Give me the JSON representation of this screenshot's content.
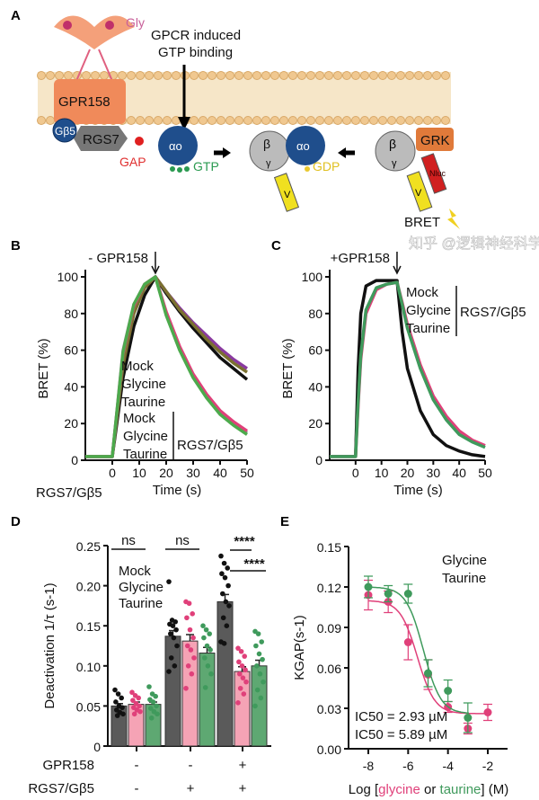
{
  "colors": {
    "mock": "#111111",
    "mock_rgs": "#8a8a8a",
    "glycine": "#e0407a",
    "glycine_norgs": "#8a3aa0",
    "taurine": "#3f9a5c",
    "taurine_norgs": "#7a7030",
    "bar_mock": "#5a5a5a",
    "bar_glycine": "#f5a3b5",
    "bar_taurine": "#5ea872",
    "membrane": "#f2d8ae"
  },
  "panelA": {
    "label": "A",
    "gly": "Gly",
    "gpcr_line1": "GPCR induced",
    "gpcr_line2": "GTP binding",
    "gpr158": "GPR158",
    "gb5": "Gβ5",
    "rgs7": "RGS7",
    "gap": "GAP",
    "alpha": "αo",
    "gtp": "GTP",
    "beta": "β",
    "gamma": "γ",
    "gdp": "GDP",
    "venus": "V",
    "grk": "GRK",
    "nluc": "Nluc",
    "bret": "BRET"
  },
  "watermark": "知乎 @逻辑神经科学",
  "chart_data": [
    {
      "panel": "B",
      "type": "line",
      "title": "- GPR158",
      "xlabel": "Time (s)",
      "ylabel": "BRET (%)",
      "xlim": [
        -10,
        50
      ],
      "ylim": [
        0,
        100
      ],
      "xticks": [
        0,
        10,
        20,
        30,
        40,
        50
      ],
      "yticks": [
        0,
        20,
        40,
        60,
        80,
        100
      ],
      "stimulus_time": 16,
      "below_label": "RGS7/Gβ5",
      "legend_group_label": "RGS7/Gβ5",
      "x": [
        -10,
        -5,
        0,
        4,
        8,
        12,
        16,
        20,
        25,
        30,
        35,
        40,
        45,
        50
      ],
      "series": [
        {
          "name": "Mock",
          "color": "#111111",
          "y": [
            2,
            2,
            2,
            45,
            73,
            90,
            100,
            91,
            81,
            72,
            64,
            56,
            50,
            44
          ]
        },
        {
          "name": "Glycine",
          "color": "#8a3aa0",
          "y": [
            2,
            2,
            2,
            55,
            82,
            95,
            100,
            92,
            83,
            75,
            68,
            61,
            55,
            50
          ]
        },
        {
          "name": "Taurine",
          "color": "#7a7030",
          "y": [
            2,
            2,
            2,
            52,
            80,
            94,
            100,
            92,
            82,
            74,
            66,
            59,
            53,
            48
          ]
        },
        {
          "name": "Mock",
          "group": "RGS7/Gβ5",
          "color": "#8a8a8a",
          "y": [
            2,
            2,
            2,
            60,
            85,
            96,
            100,
            80,
            61,
            46,
            35,
            26,
            20,
            15
          ]
        },
        {
          "name": "Glycine",
          "group": "RGS7/Gβ5",
          "color": "#e0407a",
          "y": [
            2,
            2,
            2,
            58,
            84,
            96,
            100,
            81,
            62,
            47,
            36,
            27,
            21,
            16
          ]
        },
        {
          "name": "Taurine",
          "group": "RGS7/Gβ5",
          "color": "#4caa4c",
          "y": [
            2,
            2,
            2,
            59,
            85,
            96,
            100,
            79,
            60,
            45,
            34,
            25,
            19,
            14
          ]
        }
      ]
    },
    {
      "panel": "C",
      "type": "line",
      "title": "+GPR158",
      "xlabel": "Time (s)",
      "ylabel": "BRET (%)",
      "xlim": [
        -10,
        50
      ],
      "ylim": [
        0,
        100
      ],
      "xticks": [
        0,
        10,
        20,
        30,
        40,
        50
      ],
      "yticks": [
        0,
        20,
        40,
        60,
        80,
        100
      ],
      "stimulus_time": 16,
      "legend_group_label": "RGS7/Gβ5",
      "x": [
        -10,
        -5,
        0,
        1,
        2,
        4,
        8,
        12,
        16,
        18,
        20,
        25,
        30,
        35,
        40,
        45,
        50
      ],
      "series": [
        {
          "name": "Mock",
          "color": "#111111",
          "y": [
            2,
            2,
            2,
            50,
            80,
            95,
            98,
            98,
            98,
            70,
            50,
            27,
            14,
            8,
            5,
            3,
            2
          ]
        },
        {
          "name": "Glycine",
          "color": "#e0407a",
          "y": [
            2,
            2,
            2,
            30,
            55,
            80,
            93,
            96,
            97,
            86,
            74,
            52,
            35,
            24,
            16,
            11,
            8
          ]
        },
        {
          "name": "Taurine",
          "color": "#3f9a5c",
          "y": [
            2,
            2,
            2,
            32,
            57,
            82,
            94,
            96,
            97,
            85,
            72,
            50,
            33,
            22,
            14,
            10,
            7
          ]
        }
      ]
    },
    {
      "panel": "D",
      "type": "bar",
      "ylabel": "Deactivation 1/τ (s-1)",
      "ylim": [
        0,
        0.25
      ],
      "yticks": [
        "0",
        "0.05",
        "0.10",
        "0.15",
        "0.20",
        "0.25"
      ],
      "legend": [
        "Mock",
        "Glycine",
        "Taurine"
      ],
      "row_labels": [
        "GPR158",
        "RGS7/Gβ5"
      ],
      "groups": [
        {
          "gpr158": "-",
          "rgs7": "-",
          "values": [
            0.05,
            0.052,
            0.052
          ],
          "errors": [
            0.003,
            0.003,
            0.003
          ],
          "significance": "ns",
          "points": [
            [
              0.07,
              0.065,
              0.06,
              0.055,
              0.05,
              0.048,
              0.045,
              0.042,
              0.04,
              0.038
            ],
            [
              0.067,
              0.063,
              0.06,
              0.057,
              0.053,
              0.05,
              0.048,
              0.045,
              0.043,
              0.04
            ],
            [
              0.074,
              0.065,
              0.062,
              0.058,
              0.055,
              0.05,
              0.047,
              0.043,
              0.04,
              0.035
            ]
          ]
        },
        {
          "gpr158": "-",
          "rgs7": "+",
          "values": [
            0.137,
            0.131,
            0.116
          ],
          "errors": [
            0.007,
            0.008,
            0.007
          ],
          "significance": "ns",
          "points": [
            [
              0.205,
              0.157,
              0.155,
              0.152,
              0.15,
              0.145,
              0.14,
              0.135,
              0.125,
              0.11,
              0.1,
              0.093
            ],
            [
              0.18,
              0.178,
              0.165,
              0.16,
              0.145,
              0.135,
              0.125,
              0.12,
              0.11,
              0.1,
              0.09,
              0.072
            ],
            [
              0.15,
              0.145,
              0.14,
              0.135,
              0.125,
              0.12,
              0.11,
              0.1,
              0.09,
              0.073
            ]
          ]
        },
        {
          "gpr158": "+",
          "rgs7": "+",
          "values": [
            0.18,
            0.093,
            0.1
          ],
          "errors": [
            0.009,
            0.006,
            0.007
          ],
          "significance": [
            "****",
            "****"
          ],
          "points": [
            [
              0.237,
              0.228,
              0.222,
              0.215,
              0.21,
              0.2,
              0.19,
              0.18,
              0.175,
              0.16,
              0.15,
              0.13,
              0.128
            ],
            [
              0.122,
              0.118,
              0.112,
              0.105,
              0.1,
              0.095,
              0.09,
              0.085,
              0.08,
              0.072,
              0.065,
              0.054
            ],
            [
              0.143,
              0.14,
              0.13,
              0.125,
              0.115,
              0.108,
              0.1,
              0.09,
              0.08,
              0.07,
              0.06,
              0.05
            ]
          ]
        }
      ]
    },
    {
      "panel": "E",
      "type": "scatter",
      "ylabel": "KGAP(s-1)",
      "xlabel_parts": [
        "Log [",
        "glycine",
        " or ",
        "taurine",
        "] (M)"
      ],
      "xlim": [
        -8.7,
        -1.2
      ],
      "ylim": [
        0,
        0.15
      ],
      "xticks": [
        -8,
        -6,
        -4,
        -2
      ],
      "yticks": [
        "0.00",
        "0.03",
        "0.06",
        "0.09",
        "0.12",
        "0.15"
      ],
      "series": [
        {
          "name": "Glycine",
          "color": "#e0407a",
          "x": [
            -8,
            -7,
            -6,
            -5,
            -4,
            -3,
            -2
          ],
          "y": [
            0.114,
            0.109,
            0.079,
            0.055,
            0.031,
            0.015,
            0.027
          ],
          "err": [
            0.011,
            0.008,
            0.013,
            0.011,
            0.004,
            0.004,
            0.006
          ],
          "ic50_label": "IC50 = 2.93 µM",
          "ic50_uM": 2.93,
          "top": 0.11,
          "bottom": 0.026
        },
        {
          "name": "Taurine",
          "color": "#3f9a5c",
          "x": [
            -8,
            -7,
            -6,
            -5,
            -4,
            -3
          ],
          "y": [
            0.12,
            0.115,
            0.115,
            0.056,
            0.043,
            0.023
          ],
          "err": [
            0.008,
            0.006,
            0.007,
            0.01,
            0.008,
            0.011
          ],
          "ic50_label": "IC50 = 5.89 µM",
          "ic50_uM": 5.89,
          "top": 0.12,
          "bottom": 0.026
        }
      ]
    }
  ]
}
